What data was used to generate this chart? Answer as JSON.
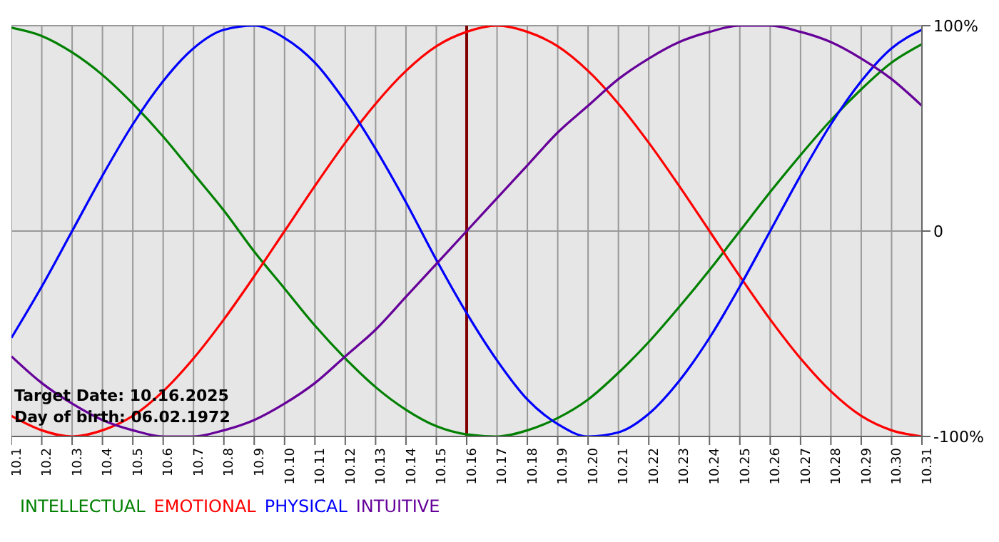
{
  "chart_data": {
    "type": "line",
    "categories": [
      "10.1",
      "10.2",
      "10.3",
      "10.4",
      "10.5",
      "10.6",
      "10.7",
      "10.8",
      "10.9",
      "10.10",
      "10.11",
      "10.12",
      "10.13",
      "10.14",
      "10.15",
      "10.16",
      "10.17",
      "10.18",
      "10.19",
      "10.20",
      "10.21",
      "10.22",
      "10.23",
      "10.24",
      "10.25",
      "10.26",
      "10.27",
      "10.28",
      "10.29",
      "10.30",
      "10.31"
    ],
    "series": [
      {
        "name": "INTELLECTUAL",
        "color": "#008000",
        "values": [
          99,
          95,
          87,
          76,
          62,
          46,
          28,
          10,
          -10,
          -28,
          -46,
          -62,
          -76,
          -87,
          -95,
          -99,
          -100,
          -97,
          -91,
          -82,
          -69,
          -54,
          -37,
          -19,
          0,
          19,
          37,
          54,
          69,
          82,
          91
        ]
      },
      {
        "name": "EMOTIONAL",
        "color": "#ff0000",
        "values": [
          -90,
          -97,
          -100,
          -97,
          -90,
          -78,
          -62,
          -43,
          -22,
          0,
          22,
          43,
          62,
          78,
          90,
          97,
          100,
          97,
          90,
          78,
          62,
          43,
          22,
          0,
          -22,
          -43,
          -62,
          -78,
          -90,
          -97,
          -100
        ]
      },
      {
        "name": "PHYSICAL",
        "color": "#0000ff",
        "values": [
          -52,
          -27,
          0,
          27,
          52,
          73,
          89,
          98,
          100,
          94,
          82,
          63,
          40,
          14,
          -14,
          -40,
          -63,
          -82,
          -94,
          -100,
          -98,
          -89,
          -73,
          -52,
          -27,
          0,
          27,
          52,
          73,
          89,
          98
        ]
      },
      {
        "name": "INTUITIVE",
        "color": "#660099",
        "values": [
          -61,
          -74,
          -84,
          -92,
          -97,
          -100,
          -100,
          -97,
          -92,
          -84,
          -74,
          -61,
          -48,
          -32,
          -16,
          0,
          16,
          32,
          48,
          61,
          74,
          84,
          92,
          97,
          100,
          100,
          97,
          92,
          84,
          74,
          61
        ]
      }
    ],
    "ylim": [
      -100,
      100
    ],
    "yticks": [
      {
        "value": -100,
        "label": "-100%"
      },
      0,
      {
        "value": 100,
        "label": "100%"
      }
    ],
    "grid": true,
    "legend": "bottom",
    "ref_lines": [
      {
        "axis": "x",
        "value": "10.16",
        "color": "#800000"
      }
    ],
    "annotations": [
      "Target Date: 10.16.2025",
      "Day of birth: 06.02.1972"
    ]
  }
}
